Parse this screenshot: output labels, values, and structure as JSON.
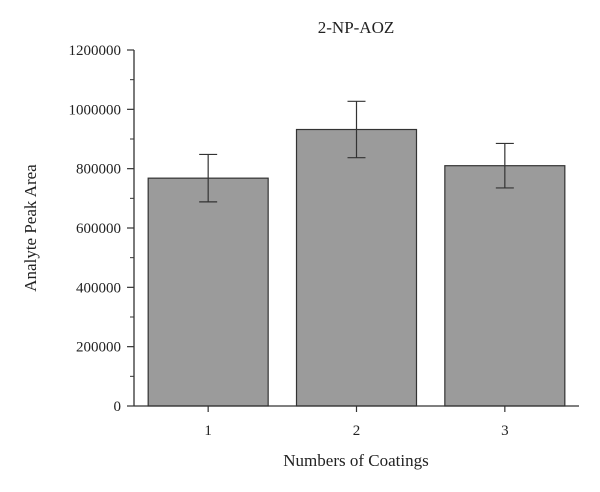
{
  "chart_data": {
    "type": "bar",
    "title": "2-NP-AOZ",
    "xlabel": "Numbers of Coatings",
    "ylabel": "Analyte Peak Area",
    "categories": [
      "1",
      "2",
      "3"
    ],
    "values": [
      768000,
      932000,
      810000
    ],
    "errors": [
      80000,
      95000,
      75000
    ],
    "ylim": [
      0,
      1200000
    ],
    "yticks": [
      0,
      200000,
      400000,
      600000,
      800000,
      1000000,
      1200000
    ],
    "ytick_labels": [
      "0",
      "200000",
      "400000",
      "600000",
      "800000",
      "1000000",
      "1200000"
    ],
    "grid": false,
    "legend": "none",
    "bar_color": "#9b9b9b",
    "bar_edge_color": "#333333"
  }
}
